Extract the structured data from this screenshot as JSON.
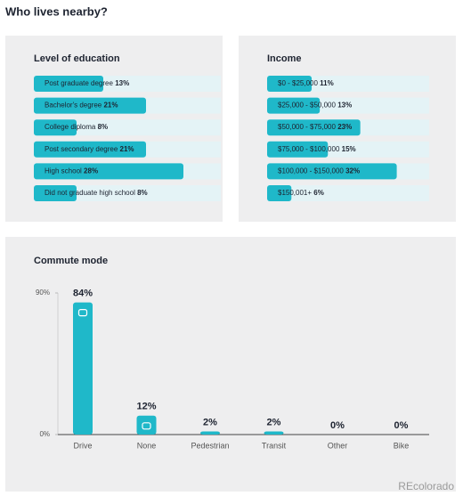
{
  "title": "Who lives nearby?",
  "chart_data": [
    {
      "type": "hbar",
      "title": "Level of education",
      "color": "#1fb8c9",
      "categories": [
        "Post graduate degree",
        "Bachelor's degree",
        "College diploma",
        "Post secondary degree",
        "High school",
        "Did not graduate high school"
      ],
      "values": [
        13,
        21,
        8,
        21,
        28,
        8
      ],
      "value_labels": [
        "13%",
        "21%",
        "8%",
        "21%",
        "28%",
        "8%"
      ]
    },
    {
      "type": "hbar",
      "title": "Income",
      "color": "#1fb8c9",
      "categories": [
        "$0 - $25,000",
        "$25,000 - $50,000",
        "$50,000 - $75,000",
        "$75,000 - $100,000",
        "$100,000 - $150,000",
        "$150,001+"
      ],
      "values": [
        11,
        13,
        23,
        15,
        32,
        6
      ],
      "value_labels": [
        "11%",
        "13%",
        "23%",
        "15%",
        "32%",
        "6%"
      ]
    },
    {
      "type": "vbar",
      "title": "Commute mode",
      "color": "#1fb8c9",
      "categories": [
        "Drive",
        "None",
        "Pedestrian",
        "Transit",
        "Other",
        "Bike"
      ],
      "values": [
        84,
        12,
        2,
        2,
        0,
        0
      ],
      "value_labels": [
        "84%",
        "12%",
        "2%",
        "2%",
        "0%",
        "0%"
      ],
      "ylim": [
        0,
        90
      ],
      "yticks": [
        {
          "value": 0,
          "label": "0%"
        },
        {
          "value": 90,
          "label": "90%"
        }
      ]
    }
  ],
  "watermark": "REcolorado"
}
